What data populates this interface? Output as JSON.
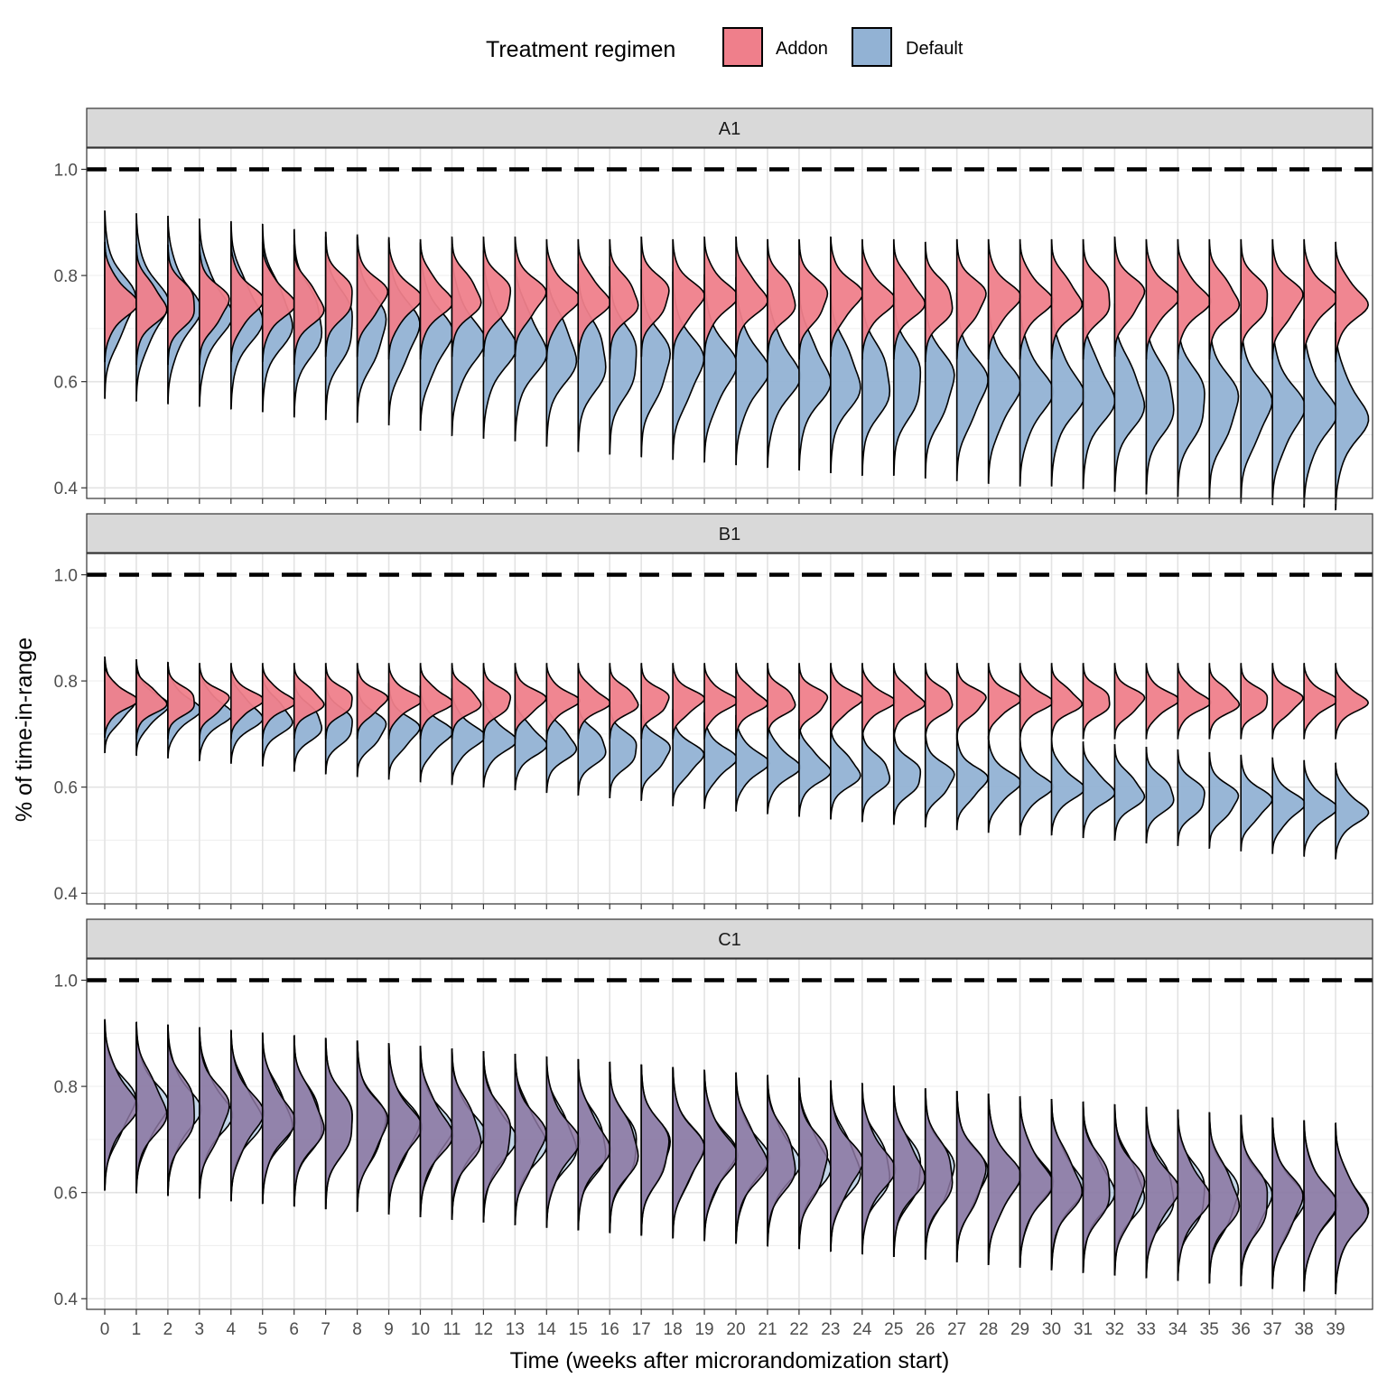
{
  "chart_data": {
    "type": "violin",
    "legend": {
      "title": "Treatment regimen",
      "placement": "top",
      "entries": [
        {
          "label": "Addon",
          "color": "#ef7f8b"
        },
        {
          "label": "Default",
          "color": "#92b2d4"
        }
      ]
    },
    "overlap_color": "#8a74a0",
    "xlabel": "Time (weeks after microrandomization start)",
    "ylabel": "% of time-in-range",
    "x": [
      0,
      1,
      2,
      3,
      4,
      5,
      6,
      7,
      8,
      9,
      10,
      11,
      12,
      13,
      14,
      15,
      16,
      17,
      18,
      19,
      20,
      21,
      22,
      23,
      24,
      25,
      26,
      27,
      28,
      29,
      30,
      31,
      32,
      33,
      34,
      35,
      36,
      37,
      38,
      39
    ],
    "ylim": [
      0.38,
      1.04
    ],
    "yticks": [
      "0.4",
      "0.6",
      "0.8",
      "1.0"
    ],
    "reference_line": 1.0,
    "grid": true,
    "panels": [
      {
        "name": "A1",
        "addon": {
          "mean": [
            0.75,
            0.745,
            0.745,
            0.745,
            0.75,
            0.75,
            0.745,
            0.76,
            0.76,
            0.755,
            0.755,
            0.76,
            0.76,
            0.76,
            0.755,
            0.755,
            0.755,
            0.76,
            0.755,
            0.76,
            0.76,
            0.755,
            0.755,
            0.76,
            0.755,
            0.755,
            0.75,
            0.755,
            0.755,
            0.755,
            0.755,
            0.755,
            0.76,
            0.755,
            0.755,
            0.755,
            0.755,
            0.755,
            0.755,
            0.75
          ],
          "sd": 0.035
        },
        "default": {
          "mean": [
            0.745,
            0.74,
            0.735,
            0.73,
            0.725,
            0.72,
            0.71,
            0.705,
            0.7,
            0.695,
            0.685,
            0.675,
            0.67,
            0.665,
            0.655,
            0.645,
            0.64,
            0.635,
            0.63,
            0.625,
            0.62,
            0.615,
            0.61,
            0.605,
            0.6,
            0.6,
            0.595,
            0.59,
            0.585,
            0.58,
            0.58,
            0.575,
            0.57,
            0.565,
            0.56,
            0.555,
            0.55,
            0.545,
            0.54,
            0.535
          ],
          "sd": 0.055
        }
      },
      {
        "name": "B1",
        "addon": {
          "mean": [
            0.765,
            0.762,
            0.762,
            0.762,
            0.762,
            0.762,
            0.762,
            0.762,
            0.762,
            0.762,
            0.762,
            0.762,
            0.762,
            0.762,
            0.762,
            0.762,
            0.762,
            0.762,
            0.762,
            0.762,
            0.762,
            0.762,
            0.762,
            0.762,
            0.762,
            0.762,
            0.762,
            0.762,
            0.762,
            0.762,
            0.762,
            0.762,
            0.762,
            0.762,
            0.762,
            0.762,
            0.762,
            0.762,
            0.762,
            0.762
          ],
          "sd": 0.022
        },
        "default": {
          "mean": [
            0.755,
            0.75,
            0.745,
            0.74,
            0.735,
            0.73,
            0.72,
            0.715,
            0.71,
            0.705,
            0.7,
            0.695,
            0.69,
            0.685,
            0.68,
            0.675,
            0.67,
            0.665,
            0.655,
            0.65,
            0.645,
            0.64,
            0.635,
            0.63,
            0.625,
            0.62,
            0.615,
            0.61,
            0.605,
            0.6,
            0.6,
            0.595,
            0.59,
            0.585,
            0.58,
            0.575,
            0.57,
            0.565,
            0.56,
            0.555
          ],
          "sd": 0.028
        }
      },
      {
        "name": "C1",
        "addon": {
          "mean": [
            0.765,
            0.76,
            0.755,
            0.75,
            0.745,
            0.74,
            0.735,
            0.73,
            0.725,
            0.72,
            0.715,
            0.71,
            0.705,
            0.7,
            0.695,
            0.69,
            0.685,
            0.68,
            0.675,
            0.67,
            0.665,
            0.66,
            0.655,
            0.65,
            0.645,
            0.64,
            0.635,
            0.63,
            0.625,
            0.62,
            0.615,
            0.61,
            0.605,
            0.6,
            0.595,
            0.59,
            0.585,
            0.58,
            0.575,
            0.57
          ],
          "sd": 0.05
        },
        "default": {
          "mean": [
            0.765,
            0.76,
            0.755,
            0.75,
            0.745,
            0.74,
            0.735,
            0.73,
            0.725,
            0.72,
            0.715,
            0.71,
            0.705,
            0.7,
            0.695,
            0.69,
            0.685,
            0.68,
            0.675,
            0.67,
            0.665,
            0.66,
            0.655,
            0.65,
            0.645,
            0.64,
            0.635,
            0.63,
            0.625,
            0.62,
            0.615,
            0.61,
            0.605,
            0.6,
            0.595,
            0.59,
            0.585,
            0.58,
            0.575,
            0.57
          ],
          "sd": 0.05
        }
      }
    ]
  }
}
